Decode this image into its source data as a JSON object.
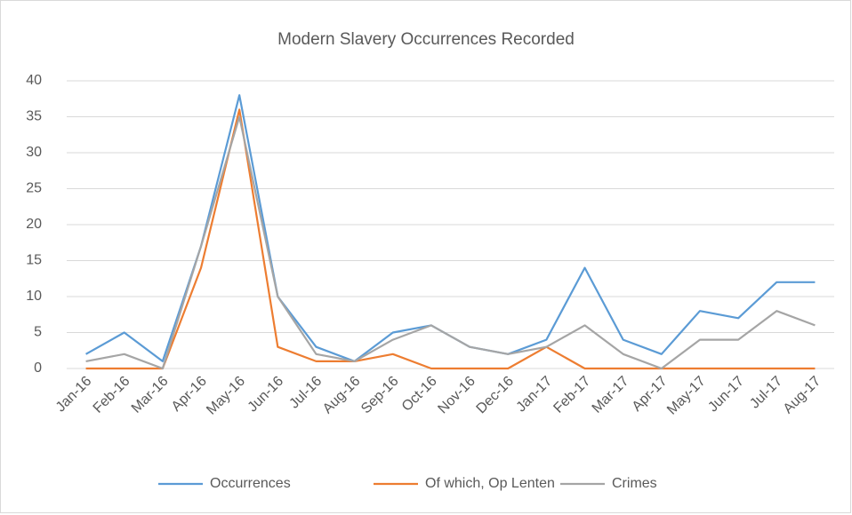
{
  "chart_data": {
    "type": "line",
    "title": "Modern Slavery Occurrences Recorded",
    "categories": [
      "Jan-16",
      "Feb-16",
      "Mar-16",
      "Apr-16",
      "May-16",
      "Jun-16",
      "Jul-16",
      "Aug-16",
      "Sep-16",
      "Oct-16",
      "Nov-16",
      "Dec-16",
      "Jan-17",
      "Feb-17",
      "Mar-17",
      "Apr-17",
      "May-17",
      "Jun-17",
      "Jul-17",
      "Aug-17"
    ],
    "series": [
      {
        "name": "Occurrences",
        "color": "#5b9bd5",
        "values": [
          2,
          5,
          1,
          17,
          38,
          10,
          3,
          1,
          5,
          6,
          3,
          2,
          4,
          14,
          4,
          2,
          8,
          7,
          12,
          12
        ]
      },
      {
        "name": "Of which, Op Lenten",
        "color": "#ed7d31",
        "values": [
          0,
          0,
          0,
          14,
          36,
          3,
          1,
          1,
          2,
          0,
          0,
          0,
          3,
          0,
          0,
          0,
          0,
          0,
          0,
          0
        ]
      },
      {
        "name": "Crimes",
        "color": "#a5a5a5",
        "values": [
          1,
          2,
          0,
          17,
          35,
          10,
          2,
          1,
          4,
          6,
          3,
          2,
          3,
          6,
          2,
          0,
          4,
          4,
          8,
          6
        ]
      }
    ],
    "ylim": [
      0,
      40
    ],
    "yticks": [
      0,
      5,
      10,
      15,
      20,
      25,
      30,
      35,
      40
    ],
    "grid": true,
    "legend": "bottom"
  }
}
